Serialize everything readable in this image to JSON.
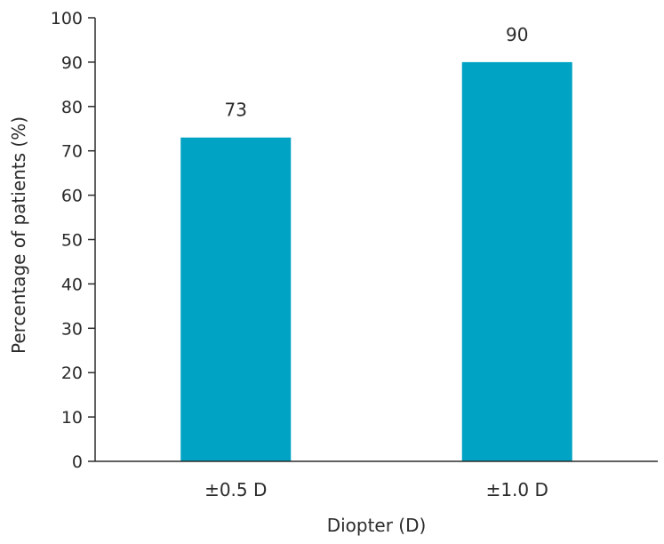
{
  "chart_data": {
    "type": "bar",
    "categories": [
      "±0.5 D",
      "±1.0 D"
    ],
    "values": [
      73,
      90
    ],
    "value_labels": [
      "73",
      "90"
    ],
    "title": "",
    "xlabel": "Diopter (D)",
    "ylabel": "Percentage of patients (%)",
    "ylim": [
      0,
      100
    ],
    "yticks": [
      0,
      10,
      20,
      30,
      40,
      50,
      60,
      70,
      80,
      90,
      100
    ],
    "grid": false,
    "legend": "none",
    "bar_color": "#00a3c4",
    "axis_color": "#2b2b2b"
  }
}
